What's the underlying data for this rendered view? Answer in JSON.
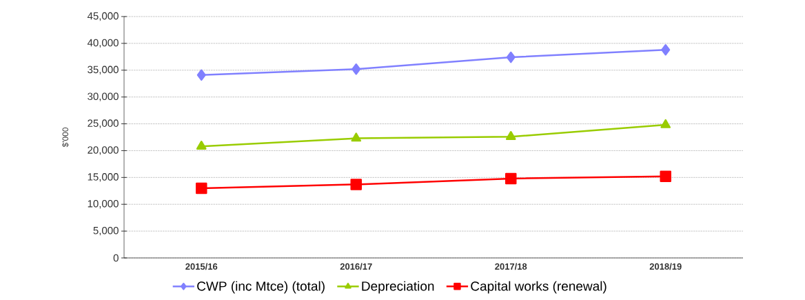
{
  "chart_data": {
    "type": "line",
    "ylabel": "$'000",
    "categories": [
      "2015/16",
      "2016/17",
      "2017/18",
      "2018/19"
    ],
    "series": [
      {
        "name": "CWP (inc Mtce) (total)",
        "color": "#8080ff",
        "marker": "diamond",
        "values": [
          34100,
          35200,
          37400,
          38800
        ]
      },
      {
        "name": "Depreciation",
        "color": "#99cc00",
        "marker": "triangle",
        "values": [
          20800,
          22300,
          22600,
          24800
        ]
      },
      {
        "name": "Capital works (renewal)",
        "color": "#ff0000",
        "marker": "square",
        "values": [
          13000,
          13700,
          14800,
          15200
        ]
      }
    ],
    "ylim": [
      0,
      45000
    ],
    "yticks": [
      {
        "value": 0,
        "label": "0"
      },
      {
        "value": 5000,
        "label": "5,000"
      },
      {
        "value": 10000,
        "label": "10,000"
      },
      {
        "value": 15000,
        "label": "15,000"
      },
      {
        "value": 20000,
        "label": "20,000"
      },
      {
        "value": 25000,
        "label": "25,000"
      },
      {
        "value": 30000,
        "label": "30,000"
      },
      {
        "value": 35000,
        "label": "35,000"
      },
      {
        "value": 40000,
        "label": "40,000"
      },
      {
        "value": 45000,
        "label": "45,000"
      }
    ],
    "grid": "y",
    "legend": "bottom",
    "line_style": "solid"
  }
}
